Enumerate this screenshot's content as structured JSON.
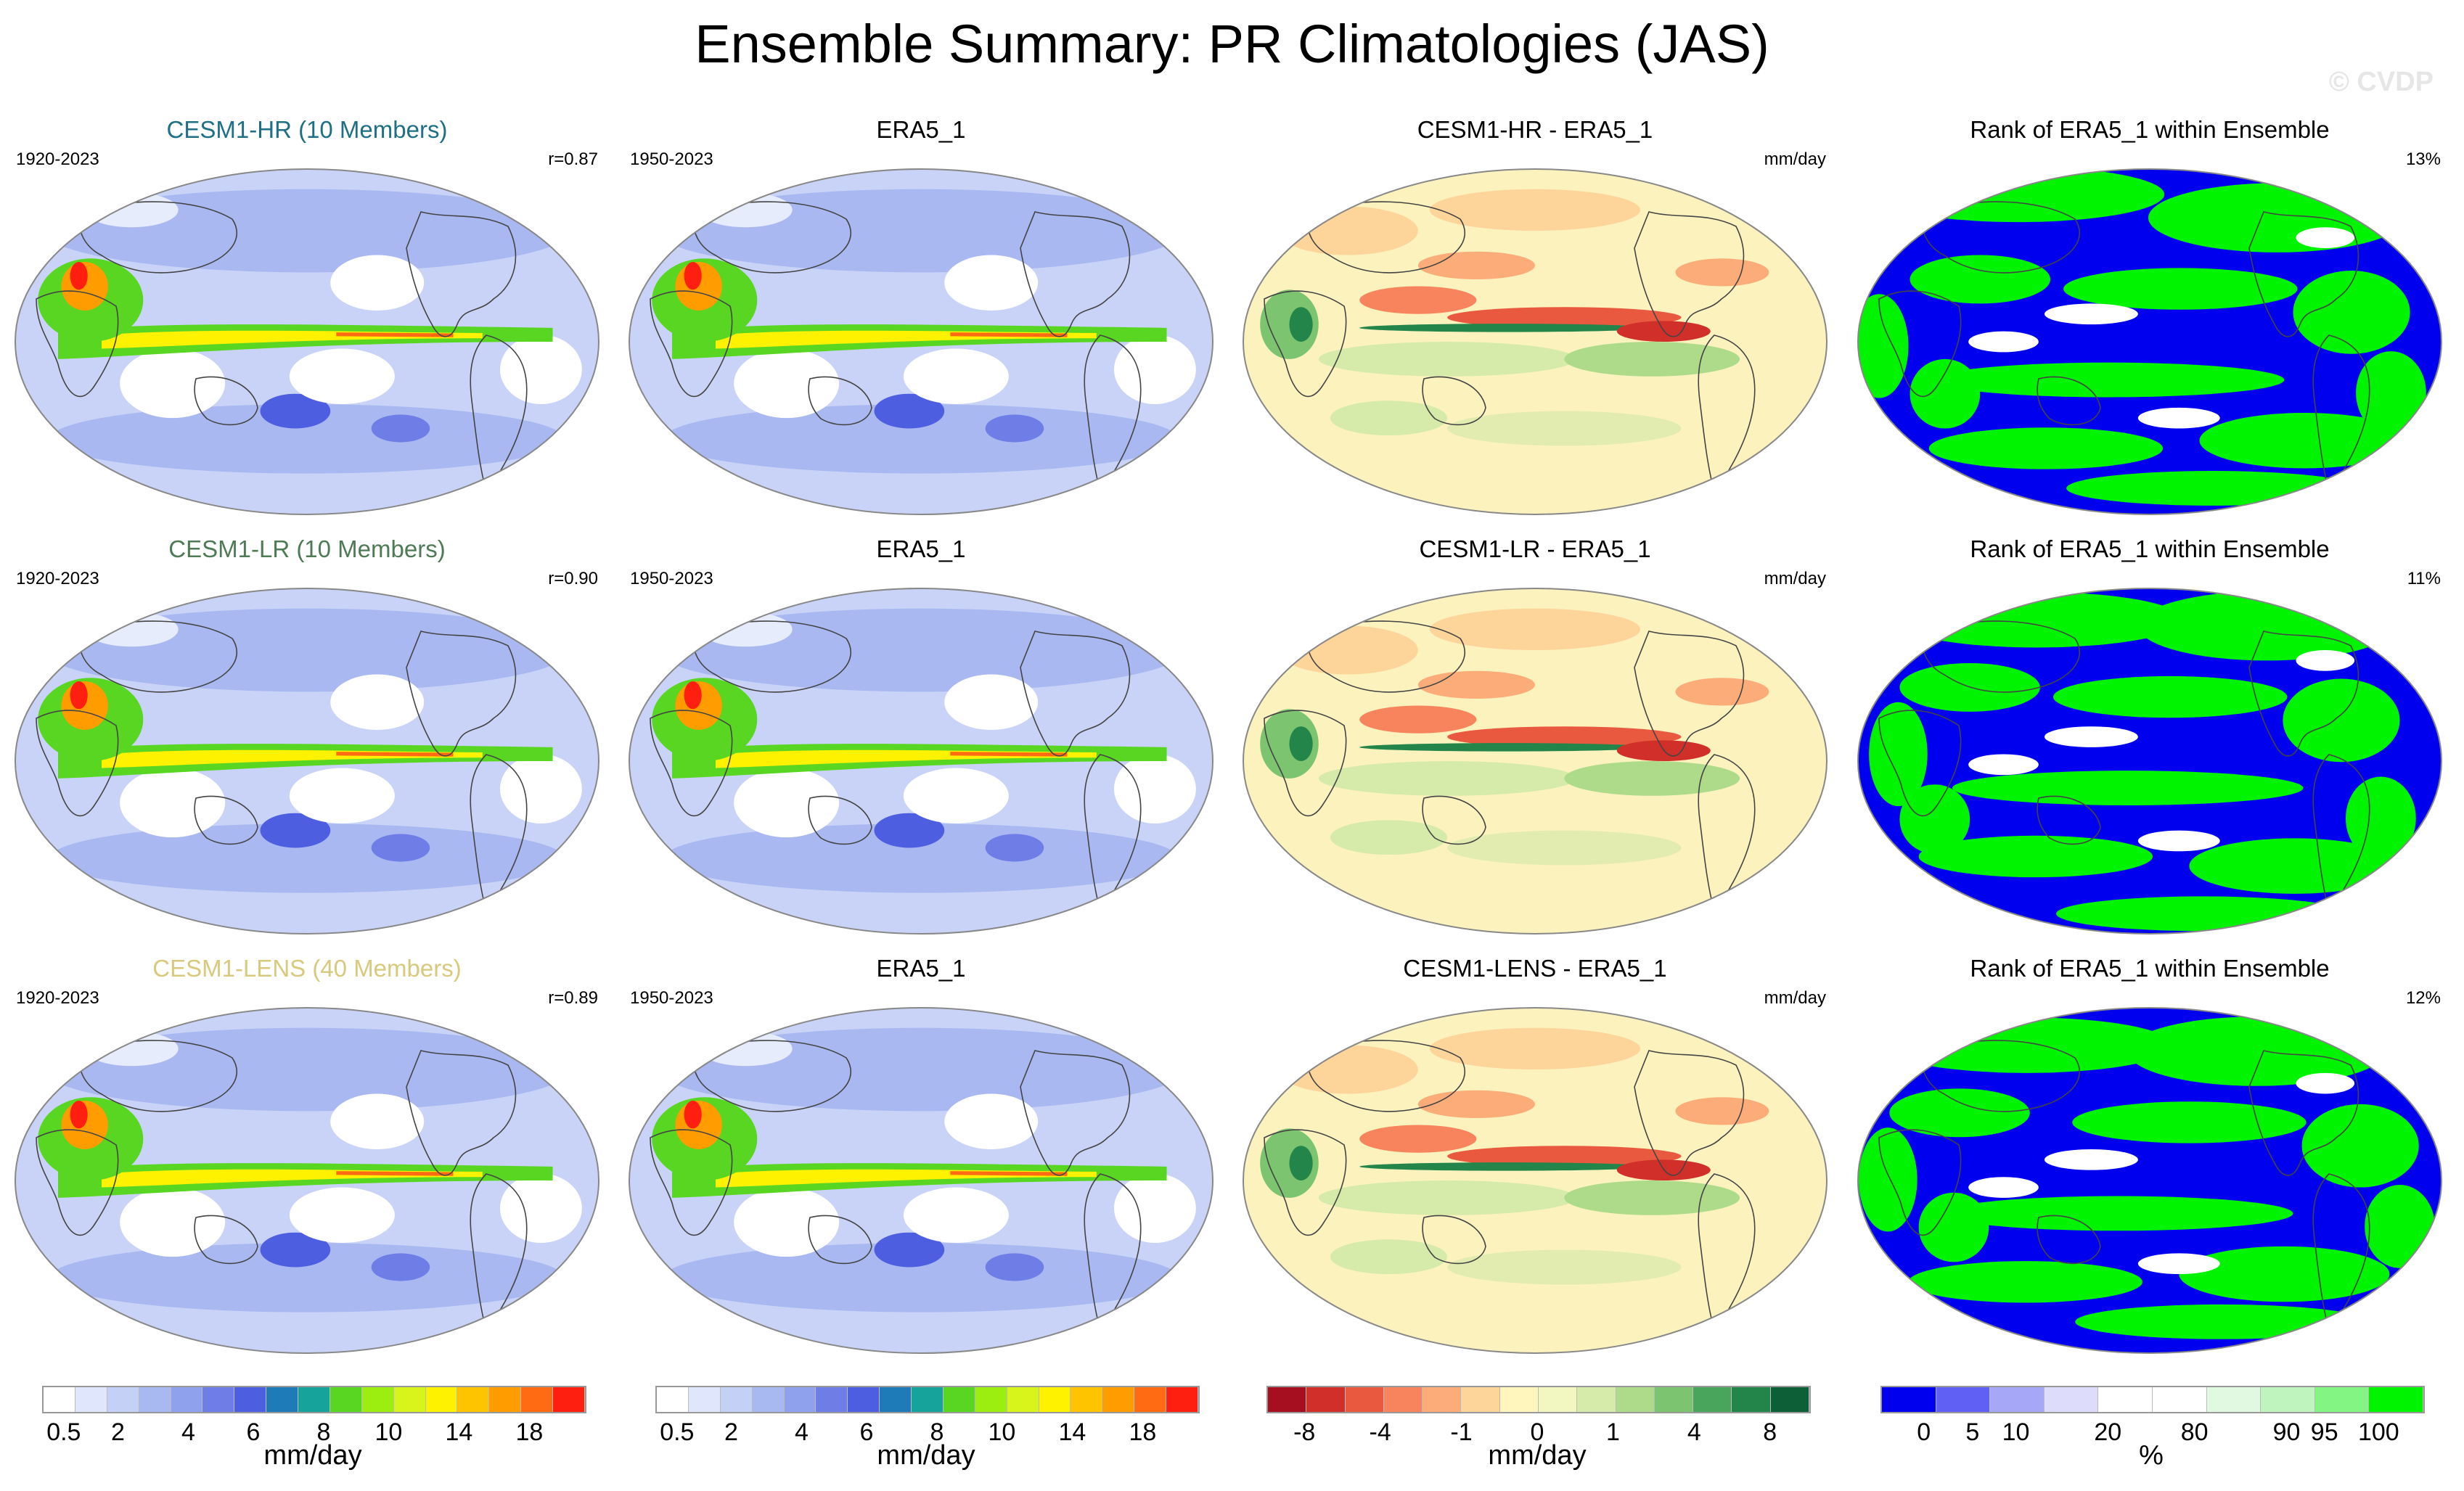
{
  "title": "Ensemble Summary: PR Climatologies (JAS)",
  "watermark": "© CVDP",
  "rows": [
    {
      "model": "CESM1-HR (10 Members)",
      "model_color": "#1f6f86",
      "model_years": "1920-2023",
      "corr": "r=0.87",
      "obs": "ERA5_1",
      "obs_years": "1950-2023",
      "diff": "CESM1-HR - ERA5_1",
      "diff_unit": "mm/day",
      "rank": "Rank of ERA5_1 within Ensemble",
      "rank_pct": "13%"
    },
    {
      "model": "CESM1-LR (10 Members)",
      "model_color": "#4f7a56",
      "model_years": "1920-2023",
      "corr": "r=0.90",
      "obs": "ERA5_1",
      "obs_years": "1950-2023",
      "diff": "CESM1-LR - ERA5_1",
      "diff_unit": "mm/day",
      "rank": "Rank of ERA5_1 within Ensemble",
      "rank_pct": "11%"
    },
    {
      "model": "CESM1-LENS (40 Members)",
      "model_color": "#d8c97c",
      "model_years": "1920-2023",
      "corr": "r=0.89",
      "obs": "ERA5_1",
      "obs_years": "1950-2023",
      "diff": "CESM1-LENS - ERA5_1",
      "diff_unit": "mm/day",
      "rank": "Rank of ERA5_1 within Ensemble",
      "rank_pct": "12%"
    }
  ],
  "colorbars": {
    "precip": {
      "colors": [
        "#ffffff",
        "#e0e6fb",
        "#c4d0f6",
        "#a8b8f1",
        "#8fa0ec",
        "#6f7ee6",
        "#4e5ee0",
        "#1f7ab8",
        "#15a39b",
        "#58d622",
        "#9bee10",
        "#d7f51b",
        "#fff200",
        "#ffc400",
        "#ff9c00",
        "#ff6b12",
        "#ff1f10"
      ],
      "ticks": [
        "0.5",
        "2",
        "4",
        "6",
        "8",
        "10",
        "14",
        "18"
      ],
      "unit": "mm/day"
    },
    "diff": {
      "colors": [
        "#a50f20",
        "#d02f2a",
        "#e9593f",
        "#f7845c",
        "#fbac78",
        "#fdd49a",
        "#fff6bd",
        "#f2f7c2",
        "#d6ebaa",
        "#addb8a",
        "#7cc470",
        "#48a55b",
        "#23854a",
        "#0c5f37"
      ],
      "ticks": [
        "-8",
        "-4",
        "-1",
        "0",
        "1",
        "4",
        "8"
      ],
      "unit": "mm/day"
    },
    "rank": {
      "colors": [
        "#0000ee",
        "#6060f4",
        "#a7a7f7",
        "#dddcfb",
        "#ffffff",
        "#ffffff",
        "#e1f9e1",
        "#bff4bf",
        "#82f582",
        "#00f400"
      ],
      "ticks": [
        "0",
        "5",
        "10",
        "20",
        "80",
        "90",
        "95",
        "100"
      ],
      "unit": "%"
    }
  }
}
